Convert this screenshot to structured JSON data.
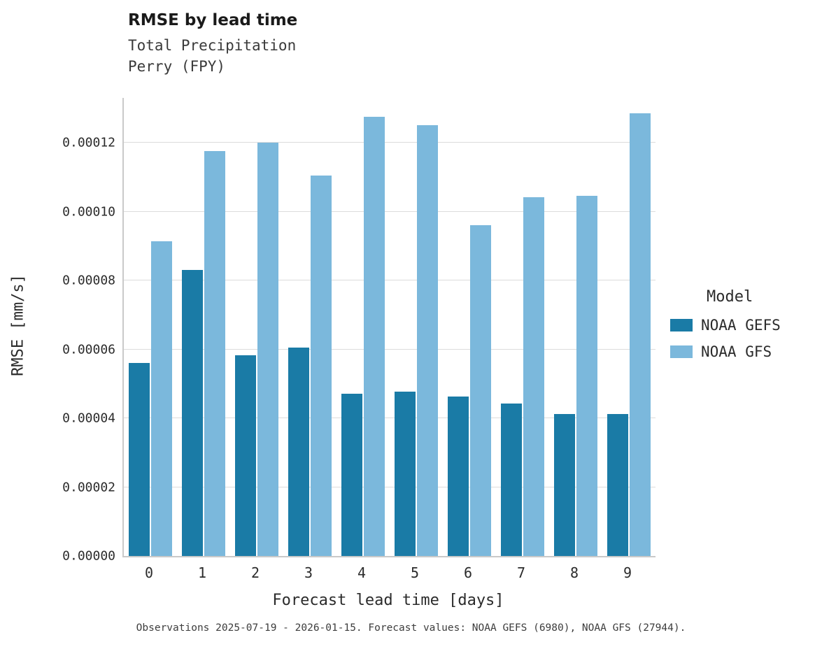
{
  "title": "RMSE by lead time",
  "subtitle_line1": "Total Precipitation",
  "subtitle_line2": "Perry (FPY)",
  "caption": "Observations 2025-07-19 - 2026-01-15. Forecast values: NOAA GEFS (6980), NOAA GFS (27944).",
  "legend": {
    "title": "Model",
    "entries": [
      {
        "label": "NOAA GEFS",
        "color": "#1a7ba6"
      },
      {
        "label": "NOAA GFS",
        "color": "#7bb8dc"
      }
    ]
  },
  "chart_data": {
    "type": "bar",
    "title": "RMSE by lead time",
    "subtitle": "Total Precipitation / Perry (FPY)",
    "xlabel": "Forecast lead time [days]",
    "ylabel": "RMSE [mm/s]",
    "categories": [
      "0",
      "1",
      "2",
      "3",
      "4",
      "5",
      "6",
      "7",
      "8",
      "9"
    ],
    "series": [
      {
        "name": "NOAA GEFS",
        "color": "#1a7ba6",
        "values": [
          5.6e-05,
          8.3e-05,
          5.82e-05,
          6.05e-05,
          4.72e-05,
          4.77e-05,
          4.62e-05,
          4.42e-05,
          4.12e-05,
          4.12e-05
        ]
      },
      {
        "name": "NOAA GFS",
        "color": "#7bb8dc",
        "values": [
          9.13e-05,
          0.0001175,
          0.00012,
          0.0001105,
          0.0001275,
          0.000125,
          9.6e-05,
          0.0001042,
          0.0001045,
          0.0001285
        ]
      }
    ],
    "yticks": [
      0.0,
      2e-05,
      4e-05,
      6e-05,
      8e-05,
      0.0001,
      0.00012
    ],
    "ytick_labels": [
      "0.00000",
      "0.00002",
      "0.00004",
      "0.00006",
      "0.00008",
      "0.00010",
      "0.00012"
    ],
    "ylim": [
      0,
      0.000133
    ],
    "grid": true,
    "legend_position": "right"
  }
}
